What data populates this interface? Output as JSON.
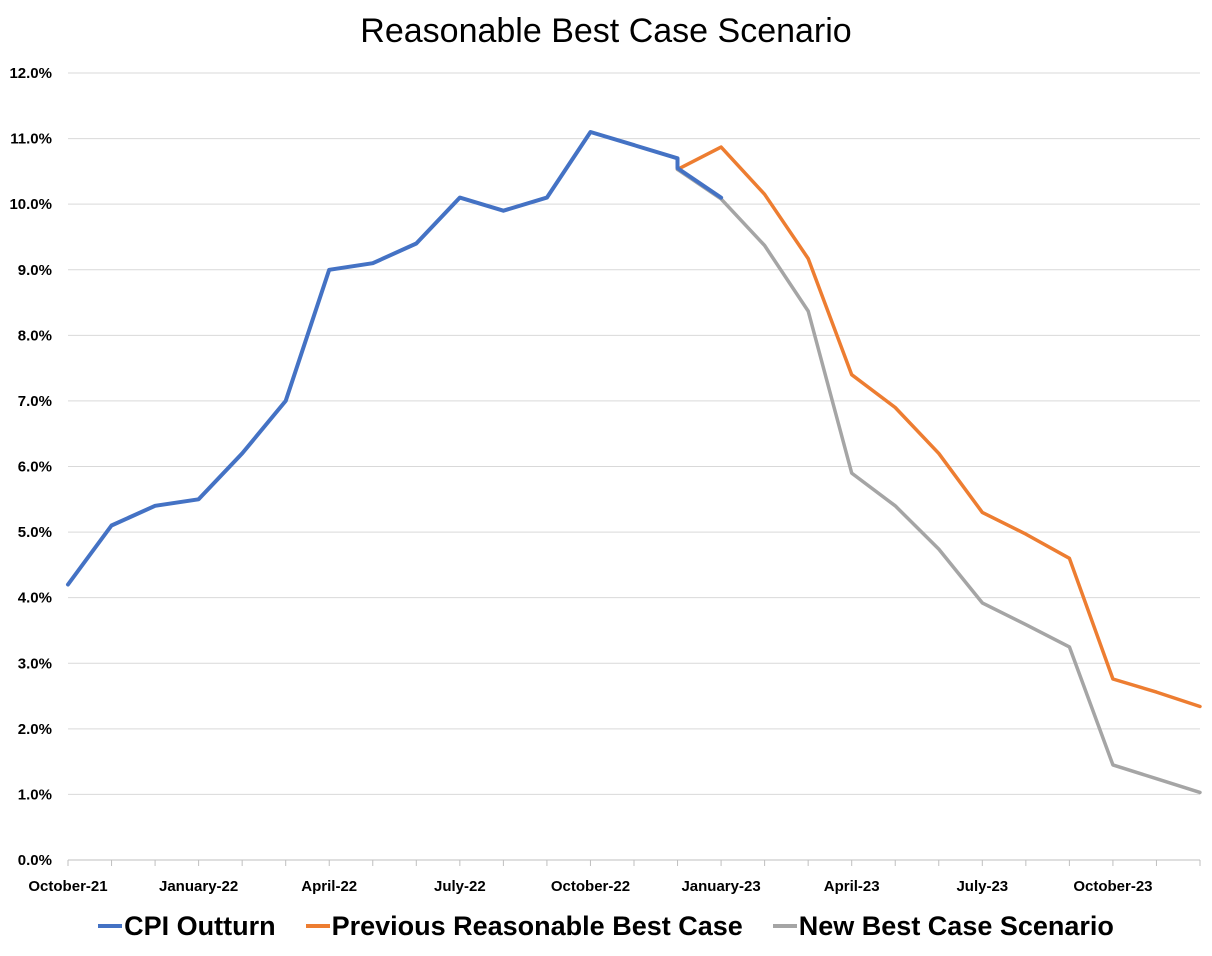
{
  "chart_data": {
    "type": "line",
    "title": "Reasonable Best Case Scenario",
    "xlabel": "",
    "ylabel": "",
    "ylim": [
      0,
      0.12
    ],
    "ytick_labels": [
      "0.0%",
      "1.0%",
      "2.0%",
      "3.0%",
      "4.0%",
      "5.0%",
      "6.0%",
      "7.0%",
      "8.0%",
      "9.0%",
      "10.0%",
      "11.0%",
      "12.0%"
    ],
    "x_month_index_range": [
      0,
      26
    ],
    "x_ticks": [
      {
        "month_index": 0,
        "label": "October-21"
      },
      {
        "month_index": 3,
        "label": "January-22"
      },
      {
        "month_index": 6,
        "label": "April-22"
      },
      {
        "month_index": 9,
        "label": "July-22"
      },
      {
        "month_index": 12,
        "label": "October-22"
      },
      {
        "month_index": 15,
        "label": "January-23"
      },
      {
        "month_index": 18,
        "label": "April-23"
      },
      {
        "month_index": 21,
        "label": "July-23"
      },
      {
        "month_index": 24,
        "label": "October-23"
      }
    ],
    "series": [
      {
        "name": "CPI Outturn",
        "color": "#4472C4",
        "points": [
          [
            0,
            0.042
          ],
          [
            1,
            0.051
          ],
          [
            2,
            0.054
          ],
          [
            3,
            0.055
          ],
          [
            4,
            0.062
          ],
          [
            5,
            0.07
          ],
          [
            6,
            0.09
          ],
          [
            7,
            0.091
          ],
          [
            8,
            0.094
          ],
          [
            9,
            0.101
          ],
          [
            10,
            0.099
          ],
          [
            11,
            0.101
          ],
          [
            12,
            0.111
          ],
          [
            13,
            0.109
          ],
          [
            14,
            0.107
          ],
          [
            14,
            0.1055
          ],
          [
            15,
            0.101
          ]
        ]
      },
      {
        "name": "Previous Reasonable Best Case",
        "color": "#ED7D31",
        "points": [
          [
            14,
            0.1053
          ],
          [
            15,
            0.1087
          ],
          [
            16,
            0.1015
          ],
          [
            17,
            0.0917
          ],
          [
            18,
            0.074
          ],
          [
            19,
            0.069
          ],
          [
            20,
            0.062
          ],
          [
            21,
            0.053
          ],
          [
            22,
            0.0497
          ],
          [
            23,
            0.046
          ],
          [
            24,
            0.0276
          ],
          [
            25,
            0.0256
          ],
          [
            26,
            0.0234
          ]
        ]
      },
      {
        "name": "New Best Case Scenario",
        "color": "#A5A5A5",
        "points": [
          [
            14,
            0.1053
          ],
          [
            15,
            0.1008
          ],
          [
            16,
            0.0937
          ],
          [
            17,
            0.0837
          ],
          [
            18,
            0.059
          ],
          [
            19,
            0.054
          ],
          [
            20,
            0.0474
          ],
          [
            21,
            0.0392
          ],
          [
            22,
            0.0359
          ],
          [
            23,
            0.0325
          ],
          [
            24,
            0.0145
          ],
          [
            25,
            0.0124
          ],
          [
            26,
            0.0103
          ]
        ]
      }
    ],
    "legend_position": "bottom"
  }
}
